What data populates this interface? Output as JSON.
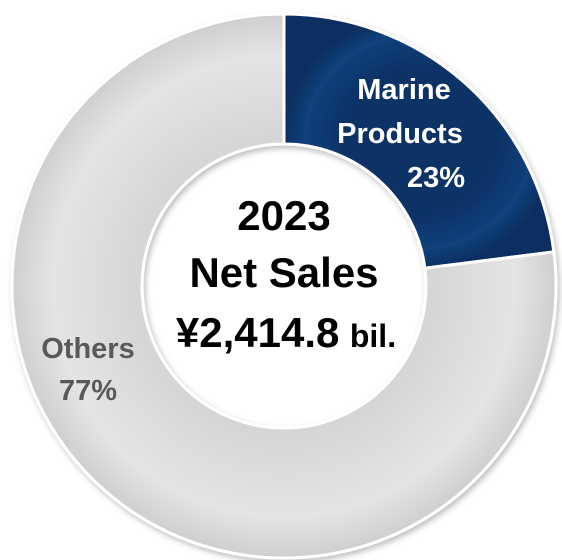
{
  "chart_data": {
    "type": "pie",
    "variant": "donut",
    "slices": [
      {
        "label_lines": [
          "Marine",
          "Products"
        ],
        "percent_label": "23%",
        "value": 23,
        "color": "#0f3a73",
        "label_color": "#ffffff"
      },
      {
        "label_lines": [
          "Others"
        ],
        "percent_label": "77%",
        "value": 77,
        "color": "#e2e2e2",
        "label_color": "#595959"
      }
    ],
    "center": {
      "year": "2023",
      "title": "Net Sales",
      "amount": "¥2,414.8",
      "unit": "bil."
    },
    "legend": "none"
  },
  "colors": {
    "marine": "#0f3a73",
    "others": "#e2e2e2",
    "edge": "#ffffff"
  }
}
